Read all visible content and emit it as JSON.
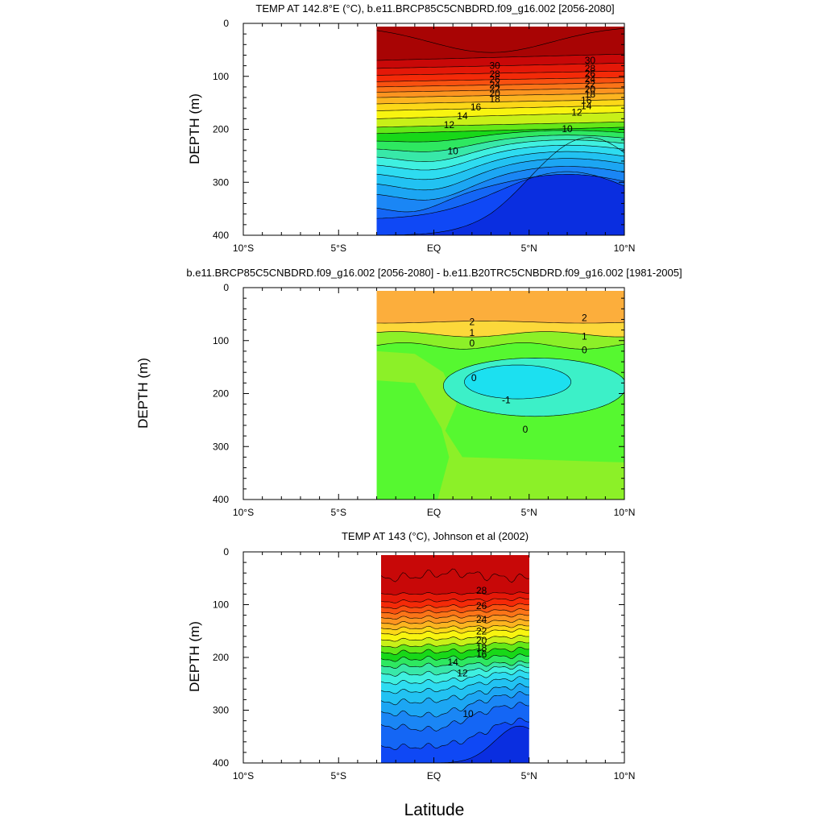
{
  "chart_data": [
    {
      "type": "contour",
      "title": "TEMP AT 142.8°E (°C), b.e11.BRCP85C5CNBDRD.f09_g16.002 [2056-2080]",
      "ylabel": "DEPTH (m)",
      "xlabel": "",
      "xlim": [
        -10,
        10
      ],
      "ylim": [
        0,
        400
      ],
      "y_inverted": true,
      "x_ticks": [
        -10,
        -5,
        0,
        5,
        10
      ],
      "x_tick_labels": [
        "10°S",
        "5°S",
        "EQ",
        "5°N",
        "10°N"
      ],
      "y_ticks": [
        0,
        100,
        200,
        300,
        400
      ],
      "y_tick_labels": [
        "0",
        "100",
        "200",
        "300",
        "400"
      ],
      "data_extent": {
        "lon_min": -3,
        "lon_max": 10,
        "depth_min": 5,
        "depth_max": 400
      },
      "contour_labels": [
        "30",
        "28",
        "26",
        "24",
        "22",
        "20",
        "18",
        "16",
        "14",
        "12",
        "10",
        "30",
        "28",
        "26",
        "24",
        "22",
        "20",
        "18",
        "16",
        "14",
        "12",
        "10"
      ]
    },
    {
      "type": "contour",
      "title": "b.e11.BRCP85C5CNBDRD.f09_g16.002 [2056-2080] - b.e11.B20TRC5CNBDRD.f09_g16.002 [1981-2005]",
      "ylabel": "DEPTH (m)",
      "xlabel": "",
      "xlim": [
        -10,
        10
      ],
      "ylim": [
        0,
        400
      ],
      "y_inverted": true,
      "x_ticks": [
        -10,
        -5,
        0,
        5,
        10
      ],
      "x_tick_labels": [
        "10°S",
        "5°S",
        "EQ",
        "5°N",
        "10°N"
      ],
      "y_ticks": [
        0,
        100,
        200,
        300,
        400
      ],
      "y_tick_labels": [
        "0",
        "100",
        "200",
        "300",
        "400"
      ],
      "data_extent": {
        "lon_min": -3,
        "lon_max": 10,
        "depth_min": 5,
        "depth_max": 400
      },
      "contour_labels": [
        "2",
        "1",
        "0",
        "0",
        "-1",
        "0",
        "2",
        "1",
        "0"
      ]
    },
    {
      "type": "contour",
      "title": "TEMP AT 143 (°C), Johnson et al (2002)",
      "ylabel": "DEPTH (m)",
      "xlabel": "Latitude",
      "xlim": [
        -10,
        10
      ],
      "ylim": [
        0,
        400
      ],
      "y_inverted": true,
      "x_ticks": [
        -10,
        -5,
        0,
        5,
        10
      ],
      "x_tick_labels": [
        "10°S",
        "5°S",
        "EQ",
        "5°N",
        "10°N"
      ],
      "y_ticks": [
        0,
        100,
        200,
        300,
        400
      ],
      "y_tick_labels": [
        "0",
        "100",
        "200",
        "300",
        "400"
      ],
      "data_extent": {
        "lon_min": -2.8,
        "lon_max": 5,
        "depth_min": 5,
        "depth_max": 400
      },
      "contour_labels": [
        "28",
        "26",
        "24",
        "22",
        "20",
        "18",
        "16",
        "14",
        "12",
        "10"
      ]
    }
  ],
  "colors": {
    "t_bands": [
      "#0a2ee0",
      "#0f48f5",
      "#1466f5",
      "#1a86f5",
      "#1ca6f3",
      "#22c2f2",
      "#2edcf0",
      "#3ff0e0",
      "#38e8a8",
      "#2ee860",
      "#18d818",
      "#64e818",
      "#c8f018",
      "#f8f410",
      "#fcd818",
      "#fcb420",
      "#fc9420",
      "#fb7418",
      "#f85010",
      "#f42a08",
      "#e41808",
      "#c80808",
      "#a80404"
    ],
    "diff_orange": "#fcae3c",
    "diff_yellow": "#fcd83a",
    "diff_lime": "#8cf028",
    "diff_green": "#56f830",
    "diff_teal": "#3cf0c8",
    "diff_cyan": "#1ce0f0"
  }
}
